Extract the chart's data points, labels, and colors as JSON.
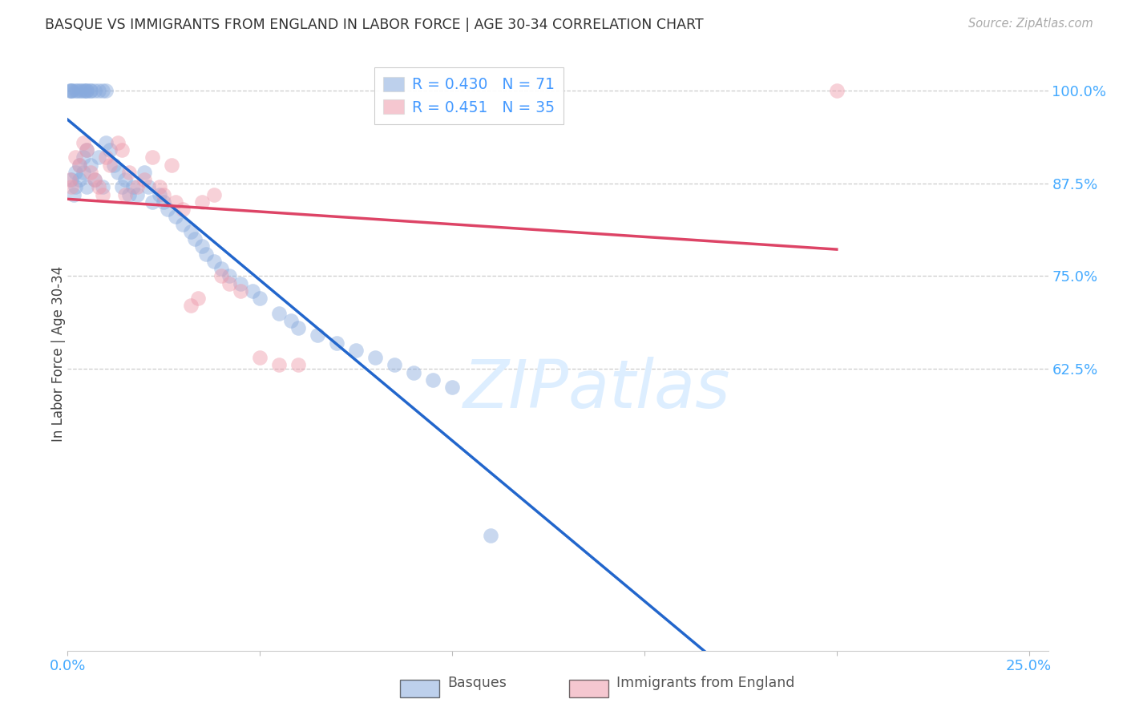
{
  "title": "BASQUE VS IMMIGRANTS FROM ENGLAND IN LABOR FORCE | AGE 30-34 CORRELATION CHART",
  "source": "Source: ZipAtlas.com",
  "ylabel": "In Labor Force | Age 30-34",
  "xlim": [
    0.0,
    0.255
  ],
  "ylim": [
    0.245,
    1.045
  ],
  "xtick_positions": [
    0.0,
    0.05,
    0.1,
    0.15,
    0.2,
    0.25
  ],
  "xticklabels": [
    "0.0%",
    "",
    "",
    "",
    "",
    "25.0%"
  ],
  "ytick_positions": [
    0.625,
    0.75,
    0.875,
    1.0
  ],
  "yticklabels": [
    "62.5%",
    "75.0%",
    "87.5%",
    "100.0%"
  ],
  "blue_fill": "#88aadd",
  "pink_fill": "#ee99aa",
  "blue_line": "#2266cc",
  "pink_line": "#dd4466",
  "grid_color": "#cccccc",
  "axis_tick_color": "#44aaff",
  "title_color": "#333333",
  "source_color": "#aaaaaa",
  "watermark_color": "#ddeeff",
  "legend_r_blue": "0.430",
  "legend_n_blue": "71",
  "legend_r_pink": "0.451",
  "legend_n_pink": "35",
  "legend_text_color": "#4499ff",
  "bottom_legend_color": "#555555",
  "basque_x": [
    0.0005,
    0.0008,
    0.001,
    0.001,
    0.0012,
    0.0015,
    0.002,
    0.002,
    0.002,
    0.0025,
    0.003,
    0.003,
    0.003,
    0.0035,
    0.004,
    0.004,
    0.004,
    0.0045,
    0.005,
    0.005,
    0.005,
    0.005,
    0.006,
    0.006,
    0.006,
    0.007,
    0.007,
    0.008,
    0.008,
    0.009,
    0.009,
    0.01,
    0.01,
    0.011,
    0.012,
    0.013,
    0.014,
    0.015,
    0.016,
    0.017,
    0.018,
    0.02,
    0.021,
    0.022,
    0.024,
    0.025,
    0.026,
    0.028,
    0.03,
    0.032,
    0.033,
    0.035,
    0.036,
    0.038,
    0.04,
    0.042,
    0.045,
    0.048,
    0.05,
    0.055,
    0.058,
    0.06,
    0.065,
    0.07,
    0.075,
    0.08,
    0.085,
    0.09,
    0.095,
    0.1,
    0.11
  ],
  "basque_y": [
    1.0,
    1.0,
    1.0,
    0.88,
    1.0,
    0.86,
    1.0,
    0.89,
    0.87,
    1.0,
    1.0,
    0.9,
    0.88,
    1.0,
    1.0,
    0.91,
    0.89,
    1.0,
    1.0,
    1.0,
    0.92,
    0.87,
    1.0,
    1.0,
    0.9,
    1.0,
    0.88,
    1.0,
    0.91,
    1.0,
    0.87,
    1.0,
    0.93,
    0.92,
    0.9,
    0.89,
    0.87,
    0.88,
    0.86,
    0.87,
    0.86,
    0.89,
    0.87,
    0.85,
    0.86,
    0.85,
    0.84,
    0.83,
    0.82,
    0.81,
    0.8,
    0.79,
    0.78,
    0.77,
    0.76,
    0.75,
    0.74,
    0.73,
    0.72,
    0.7,
    0.69,
    0.68,
    0.67,
    0.66,
    0.65,
    0.64,
    0.63,
    0.62,
    0.61,
    0.6,
    0.4
  ],
  "england_x": [
    0.0005,
    0.001,
    0.002,
    0.003,
    0.004,
    0.005,
    0.006,
    0.007,
    0.008,
    0.009,
    0.01,
    0.011,
    0.013,
    0.014,
    0.015,
    0.016,
    0.018,
    0.02,
    0.022,
    0.024,
    0.025,
    0.027,
    0.028,
    0.03,
    0.032,
    0.034,
    0.035,
    0.038,
    0.04,
    0.042,
    0.045,
    0.05,
    0.055,
    0.06,
    0.2
  ],
  "england_y": [
    0.88,
    0.87,
    0.91,
    0.9,
    0.93,
    0.92,
    0.89,
    0.88,
    0.87,
    0.86,
    0.91,
    0.9,
    0.93,
    0.92,
    0.86,
    0.89,
    0.87,
    0.88,
    0.91,
    0.87,
    0.86,
    0.9,
    0.85,
    0.84,
    0.71,
    0.72,
    0.85,
    0.86,
    0.75,
    0.74,
    0.73,
    0.64,
    0.63,
    0.63,
    1.0
  ]
}
